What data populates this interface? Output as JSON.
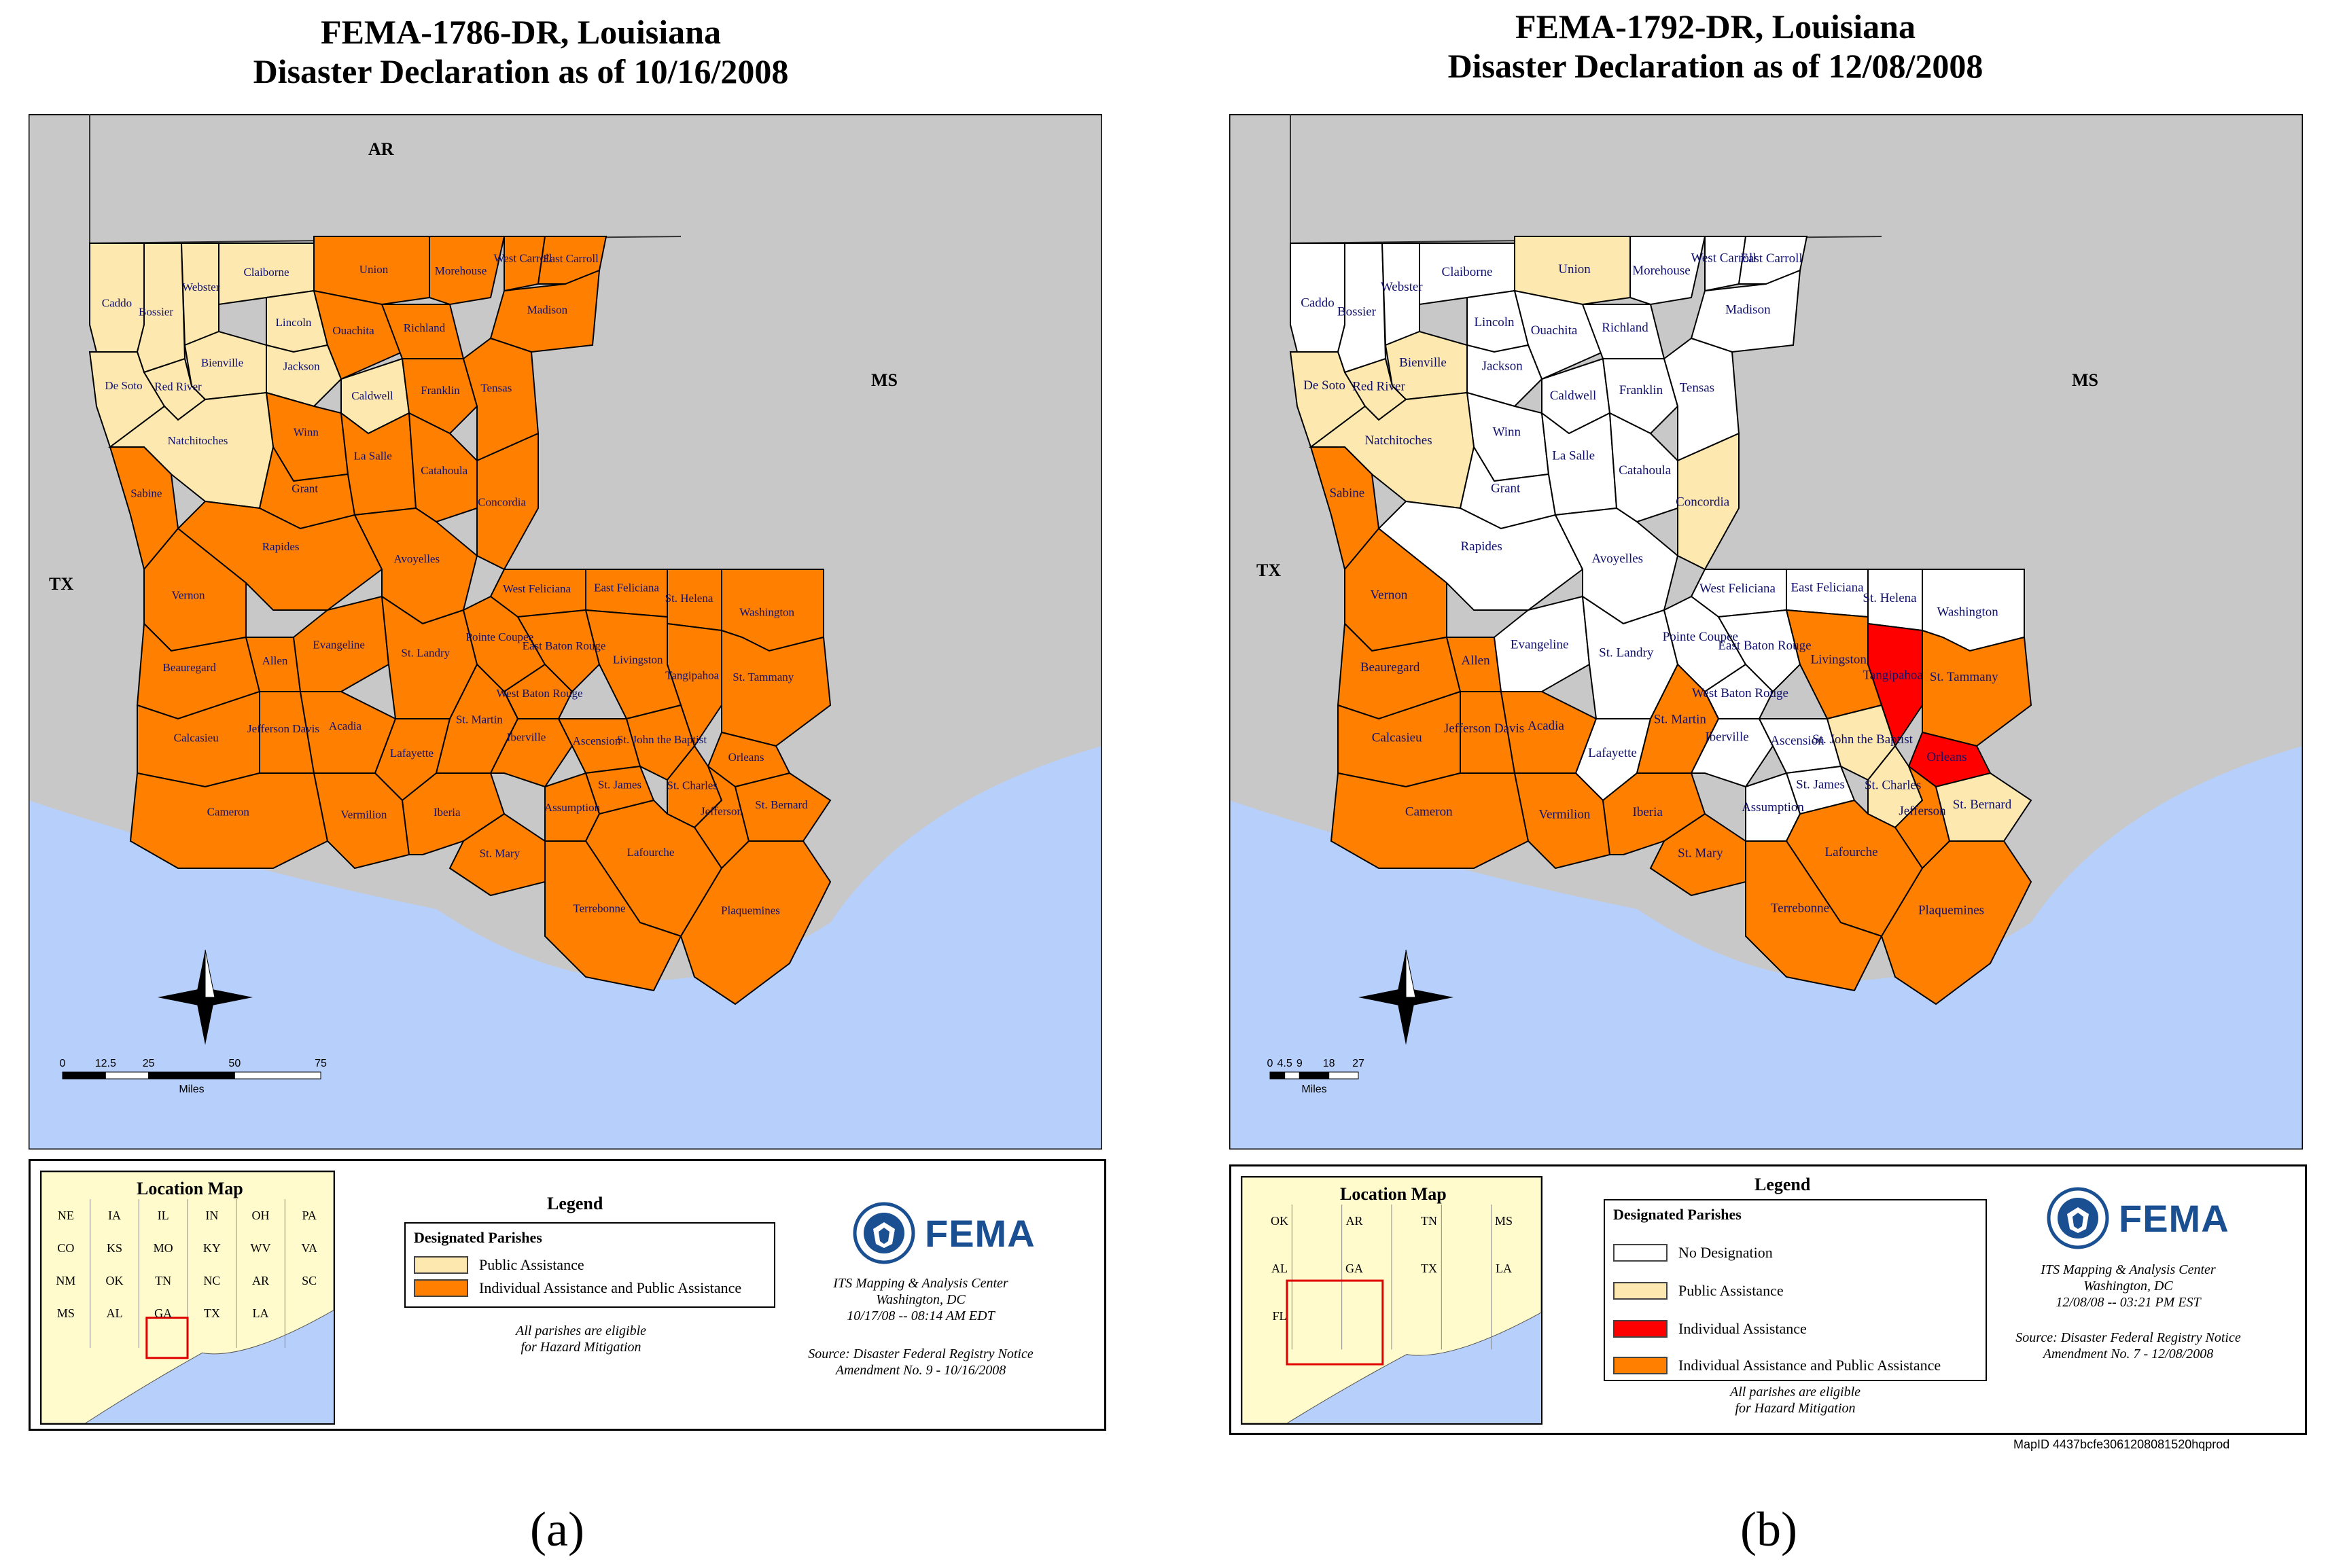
{
  "colors": {
    "ocean": "#b7cffb",
    "land_other": "#c8c8c8",
    "none": "#ffffff",
    "public": "#fde9b0",
    "individual": "#ff0000",
    "both": "#ff8000",
    "fema_blue": "#1a4f91"
  },
  "panels": [
    {
      "id": "a",
      "title_line1": "FEMA-1786-DR, Louisiana",
      "title_line2": "Disaster Declaration as of 10/16/2008",
      "caption": "(a)",
      "state_labels": [
        "AR",
        "MS",
        "TX"
      ],
      "parishes": [
        {
          "name": "Caddo",
          "status": "public"
        },
        {
          "name": "Bossier",
          "status": "public"
        },
        {
          "name": "Webster",
          "status": "public"
        },
        {
          "name": "Claiborne",
          "status": "public"
        },
        {
          "name": "Union",
          "status": "both"
        },
        {
          "name": "Morehouse",
          "status": "both"
        },
        {
          "name": "West Carroll",
          "status": "both"
        },
        {
          "name": "East Carroll",
          "status": "both"
        },
        {
          "name": "Lincoln",
          "status": "public"
        },
        {
          "name": "Ouachita",
          "status": "both"
        },
        {
          "name": "Richland",
          "status": "both"
        },
        {
          "name": "Madison",
          "status": "both"
        },
        {
          "name": "Bienville",
          "status": "public"
        },
        {
          "name": "Jackson",
          "status": "public"
        },
        {
          "name": "Caldwell",
          "status": "public"
        },
        {
          "name": "Franklin",
          "status": "both"
        },
        {
          "name": "Tensas",
          "status": "both"
        },
        {
          "name": "De Soto",
          "status": "public"
        },
        {
          "name": "Red River",
          "status": "public"
        },
        {
          "name": "Winn",
          "status": "both"
        },
        {
          "name": "Natchitoches",
          "status": "public"
        },
        {
          "name": "Grant",
          "status": "both"
        },
        {
          "name": "La Salle",
          "status": "both"
        },
        {
          "name": "Catahoula",
          "status": "both"
        },
        {
          "name": "Concordia",
          "status": "both"
        },
        {
          "name": "Sabine",
          "status": "both"
        },
        {
          "name": "Rapides",
          "status": "both"
        },
        {
          "name": "Vernon",
          "status": "both"
        },
        {
          "name": "Avoyelles",
          "status": "both"
        },
        {
          "name": "West Feliciana",
          "status": "both"
        },
        {
          "name": "East Feliciana",
          "status": "both"
        },
        {
          "name": "St. Helena",
          "status": "both"
        },
        {
          "name": "Washington",
          "status": "both"
        },
        {
          "name": "Beauregard",
          "status": "both"
        },
        {
          "name": "Allen",
          "status": "both"
        },
        {
          "name": "Evangeline",
          "status": "both"
        },
        {
          "name": "St. Landry",
          "status": "both"
        },
        {
          "name": "Pointe Coupee",
          "status": "both"
        },
        {
          "name": "East Baton Rouge",
          "status": "both"
        },
        {
          "name": "Tangipahoa",
          "status": "both"
        },
        {
          "name": "West Baton Rouge",
          "status": "both"
        },
        {
          "name": "Livingston",
          "status": "both"
        },
        {
          "name": "St. Tammany",
          "status": "both"
        },
        {
          "name": "Calcasieu",
          "status": "both"
        },
        {
          "name": "Jefferson Davis",
          "status": "both"
        },
        {
          "name": "Acadia",
          "status": "both"
        },
        {
          "name": "Lafayette",
          "status": "both"
        },
        {
          "name": "St. Martin",
          "status": "both"
        },
        {
          "name": "Iberville",
          "status": "both"
        },
        {
          "name": "Ascension",
          "status": "both"
        },
        {
          "name": "St. John the Baptist",
          "status": "both"
        },
        {
          "name": "Orleans",
          "status": "both"
        },
        {
          "name": "St. James",
          "status": "both"
        },
        {
          "name": "Cameron",
          "status": "both"
        },
        {
          "name": "Vermilion",
          "status": "both"
        },
        {
          "name": "Iberia",
          "status": "both"
        },
        {
          "name": "Assumption",
          "status": "both"
        },
        {
          "name": "St. Charles",
          "status": "both"
        },
        {
          "name": "Jefferson",
          "status": "both"
        },
        {
          "name": "St. Bernard",
          "status": "both"
        },
        {
          "name": "St. Mary",
          "status": "both"
        },
        {
          "name": "Lafourche",
          "status": "both"
        },
        {
          "name": "Terrebonne",
          "status": "both"
        },
        {
          "name": "Plaquemines",
          "status": "both"
        }
      ],
      "scale": {
        "ticks": [
          "0",
          "12.5",
          "25",
          "50",
          "75"
        ],
        "unit": "Miles"
      },
      "inset": {
        "title": "Location Map",
        "labels": [
          "NE",
          "IA",
          "IL",
          "IN",
          "OH",
          "PA",
          "CO",
          "KS",
          "MO",
          "KY",
          "WV",
          "VA",
          "NM",
          "OK",
          "TN",
          "NC",
          "AR",
          "SC",
          "MS",
          "AL",
          "GA",
          "TX",
          "LA"
        ]
      },
      "legend": {
        "title": "Legend",
        "heading": "Designated Parishes",
        "items": [
          {
            "label": "Public Assistance",
            "status": "public"
          },
          {
            "label": "Individual Assistance and Public Assistance",
            "status": "both"
          }
        ],
        "note_line1": "All parishes are eligible",
        "note_line2": "for Hazard Mitigation"
      },
      "fema": {
        "logo_text": "FEMA",
        "line1": "ITS Mapping & Analysis Center",
        "line2": "Washington, DC",
        "line3": "10/17/08 -- 08:14 AM EDT",
        "source1": "Source: Disaster Federal Registry Notice",
        "source2": "Amendment No. 9 - 10/16/2008"
      }
    },
    {
      "id": "b",
      "title_line1": "FEMA-1792-DR, Louisiana",
      "title_line2": "Disaster Declaration as of 12/08/2008",
      "caption": "(b)",
      "state_labels": [
        "MS",
        "TX"
      ],
      "parishes": [
        {
          "name": "Caddo",
          "status": "none"
        },
        {
          "name": "Bossier",
          "status": "none"
        },
        {
          "name": "Webster",
          "status": "none"
        },
        {
          "name": "Claiborne",
          "status": "none"
        },
        {
          "name": "Union",
          "status": "public"
        },
        {
          "name": "Morehouse",
          "status": "none"
        },
        {
          "name": "West Carroll",
          "status": "none"
        },
        {
          "name": "East Carroll",
          "status": "none"
        },
        {
          "name": "Lincoln",
          "status": "none"
        },
        {
          "name": "Ouachita",
          "status": "none"
        },
        {
          "name": "Richland",
          "status": "none"
        },
        {
          "name": "Madison",
          "status": "none"
        },
        {
          "name": "Bienville",
          "status": "public"
        },
        {
          "name": "Jackson",
          "status": "none"
        },
        {
          "name": "Caldwell",
          "status": "none"
        },
        {
          "name": "Franklin",
          "status": "none"
        },
        {
          "name": "Tensas",
          "status": "none"
        },
        {
          "name": "De Soto",
          "status": "public"
        },
        {
          "name": "Red River",
          "status": "public"
        },
        {
          "name": "Winn",
          "status": "none"
        },
        {
          "name": "Natchitoches",
          "status": "public"
        },
        {
          "name": "Grant",
          "status": "none"
        },
        {
          "name": "La Salle",
          "status": "none"
        },
        {
          "name": "Catahoula",
          "status": "none"
        },
        {
          "name": "Concordia",
          "status": "public"
        },
        {
          "name": "Sabine",
          "status": "both"
        },
        {
          "name": "Rapides",
          "status": "none"
        },
        {
          "name": "Vernon",
          "status": "both"
        },
        {
          "name": "Avoyelles",
          "status": "none"
        },
        {
          "name": "West Feliciana",
          "status": "none"
        },
        {
          "name": "East Feliciana",
          "status": "none"
        },
        {
          "name": "St. Helena",
          "status": "none"
        },
        {
          "name": "Washington",
          "status": "none"
        },
        {
          "name": "Beauregard",
          "status": "both"
        },
        {
          "name": "Allen",
          "status": "both"
        },
        {
          "name": "Evangeline",
          "status": "none"
        },
        {
          "name": "St. Landry",
          "status": "none"
        },
        {
          "name": "Pointe Coupee",
          "status": "none"
        },
        {
          "name": "East Baton Rouge",
          "status": "none"
        },
        {
          "name": "Tangipahoa",
          "status": "individual"
        },
        {
          "name": "West Baton Rouge",
          "status": "none"
        },
        {
          "name": "Livingston",
          "status": "both"
        },
        {
          "name": "St. Tammany",
          "status": "both"
        },
        {
          "name": "Calcasieu",
          "status": "both"
        },
        {
          "name": "Jefferson Davis",
          "status": "both"
        },
        {
          "name": "Acadia",
          "status": "both"
        },
        {
          "name": "Lafayette",
          "status": "none"
        },
        {
          "name": "St. Martin",
          "status": "both"
        },
        {
          "name": "Iberville",
          "status": "none"
        },
        {
          "name": "Ascension",
          "status": "none"
        },
        {
          "name": "St. John the Baptist",
          "status": "public"
        },
        {
          "name": "Orleans",
          "status": "individual"
        },
        {
          "name": "St. James",
          "status": "none"
        },
        {
          "name": "Cameron",
          "status": "both"
        },
        {
          "name": "Vermilion",
          "status": "both"
        },
        {
          "name": "Iberia",
          "status": "both"
        },
        {
          "name": "Assumption",
          "status": "none"
        },
        {
          "name": "St. Charles",
          "status": "public"
        },
        {
          "name": "Jefferson",
          "status": "both"
        },
        {
          "name": "St. Bernard",
          "status": "public"
        },
        {
          "name": "St. Mary",
          "status": "both"
        },
        {
          "name": "Lafourche",
          "status": "both"
        },
        {
          "name": "Terrebonne",
          "status": "both"
        },
        {
          "name": "Plaquemines",
          "status": "both"
        }
      ],
      "scale": {
        "ticks": [
          "0",
          "4.5",
          "9",
          "18",
          "27"
        ],
        "unit": "Miles"
      },
      "inset": {
        "title": "Location Map",
        "labels": [
          "OK",
          "AR",
          "TN",
          "MS",
          "AL",
          "GA",
          "TX",
          "LA",
          "FL"
        ]
      },
      "legend": {
        "title": "Legend",
        "heading": "Designated Parishes",
        "items": [
          {
            "label": "No Designation",
            "status": "none"
          },
          {
            "label": "Public Assistance",
            "status": "public"
          },
          {
            "label": "Individual Assistance",
            "status": "individual"
          },
          {
            "label": "Individual Assistance and Public Assistance",
            "status": "both"
          }
        ],
        "note_line1": "All parishes are eligible",
        "note_line2": "for Hazard Mitigation"
      },
      "fema": {
        "logo_text": "FEMA",
        "line1": "ITS Mapping & Analysis Center",
        "line2": "Washington, DC",
        "line3": "12/08/08 -- 03:21 PM EST",
        "source1": "Source: Disaster Federal Registry Notice",
        "source2": "Amendment No. 7 - 12/08/2008"
      },
      "map_id": "MapID 4437bcfe3061208081520hqprod"
    }
  ]
}
